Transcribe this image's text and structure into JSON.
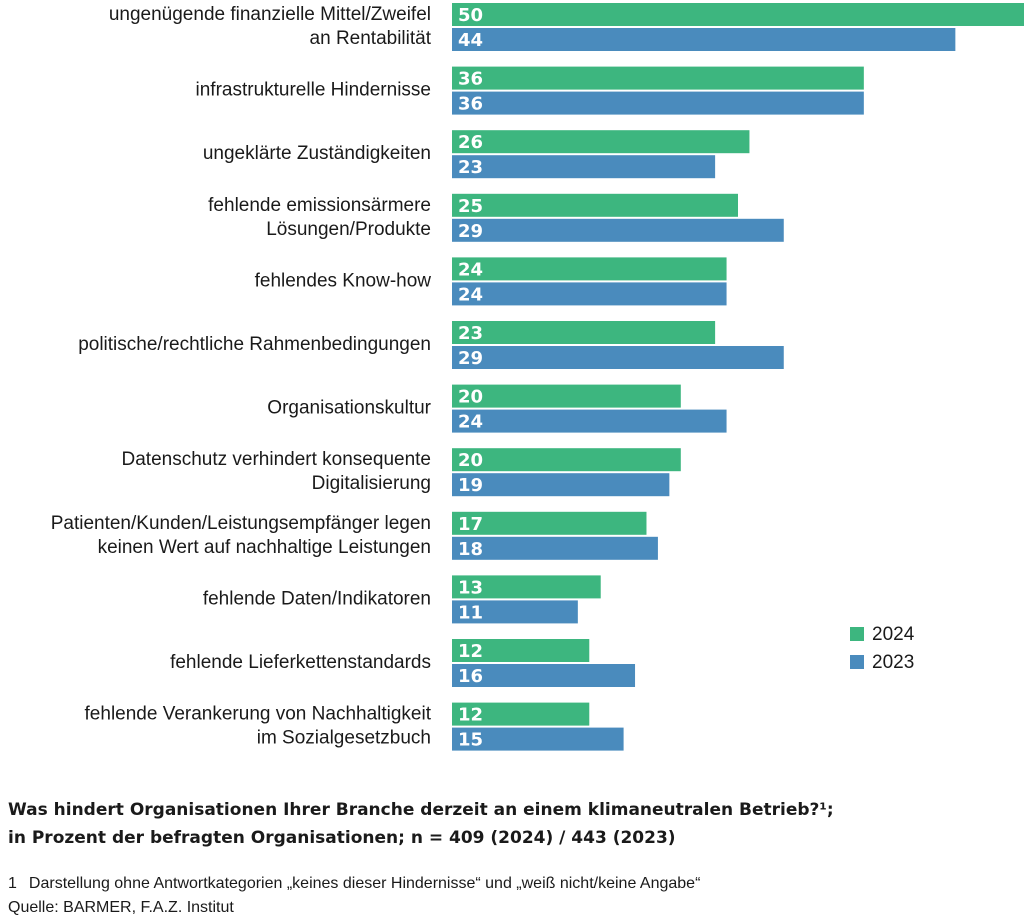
{
  "chart_data": {
    "type": "bar",
    "orientation": "horizontal",
    "categories": [
      [
        "ungenügende finanzielle Mittel/Zweifel",
        "an Rentabilität"
      ],
      [
        "infrastrukturelle Hindernisse"
      ],
      [
        "ungeklärte Zuständigkeiten"
      ],
      [
        "fehlende emissionsärmere",
        "Lösungen/Produkte"
      ],
      [
        "fehlendes Know-how"
      ],
      [
        "politische/rechtliche Rahmenbedingungen"
      ],
      [
        "Organisationskultur"
      ],
      [
        "Datenschutz verhindert konsequente",
        "Digitalisierung"
      ],
      [
        "Patienten/Kunden/Leistungsempfänger legen",
        "keinen Wert auf nachhaltige Leistungen"
      ],
      [
        "fehlende Daten/Indikatoren"
      ],
      [
        "fehlende Lieferkettenstandards"
      ],
      [
        "fehlende Verankerung von Nachhaltigkeit",
        "im Sozialgesetzbuch"
      ]
    ],
    "series": [
      {
        "name": "2024",
        "color": "#3db67f",
        "values": [
          50,
          36,
          26,
          25,
          24,
          23,
          20,
          20,
          17,
          13,
          12,
          12
        ]
      },
      {
        "name": "2023",
        "color": "#4a8bbd",
        "values": [
          44,
          36,
          23,
          29,
          24,
          29,
          24,
          19,
          18,
          11,
          16,
          15
        ]
      }
    ],
    "xlim": [
      0,
      50
    ],
    "legend_position": "right",
    "grid": false
  },
  "caption": {
    "line1": "Was hindert Organisationen Ihrer Branche derzeit an einem klimaneutralen Betrieb?¹;",
    "line2": "in Prozent der befragten Organisationen; n = 409 (2024) / 443 (2023)"
  },
  "footnote": {
    "mark": "1",
    "text": "Darstellung ohne Antwortkategorien „keines dieser Hindernisse“ und „weiß nicht/keine Angabe“"
  },
  "source": "Quelle: BARMER, F.A.Z. Institut"
}
